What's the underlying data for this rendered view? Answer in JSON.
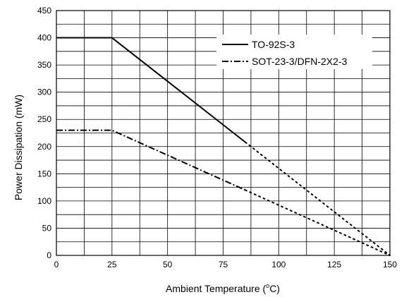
{
  "chart_data": {
    "type": "line",
    "xlabel_prefix": "Ambient Temperature (",
    "xlabel_degree": "o",
    "xlabel_suffix": "C)",
    "ylabel": "Power Dissipation (mW)",
    "xlim": [
      0,
      150
    ],
    "ylim": [
      0,
      450
    ],
    "x_ticks": [
      "0",
      "25",
      "50",
      "75",
      "100",
      "125",
      "150"
    ],
    "y_ticks": [
      "0",
      "50",
      "100",
      "150",
      "200",
      "250",
      "300",
      "350",
      "400",
      "450"
    ],
    "grid": true,
    "legend_position": "top-right",
    "series": [
      {
        "name": "TO-92S-3",
        "style": "solid",
        "points": [
          [
            0,
            400
          ],
          [
            25,
            400
          ],
          [
            85,
            208
          ]
        ],
        "extension_style": "dotted",
        "extension": [
          [
            85,
            208
          ],
          [
            150,
            0
          ]
        ]
      },
      {
        "name": "SOT-23-3/DFN-2X2-3",
        "style": "dash-dot",
        "points": [
          [
            0,
            230
          ],
          [
            25,
            230
          ],
          [
            85,
            120
          ]
        ],
        "extension_style": "dotted",
        "extension": [
          [
            85,
            120
          ],
          [
            150,
            0
          ]
        ]
      }
    ],
    "colors": {
      "line": "#000000",
      "grid": "#000000",
      "background": "#ffffff"
    }
  }
}
